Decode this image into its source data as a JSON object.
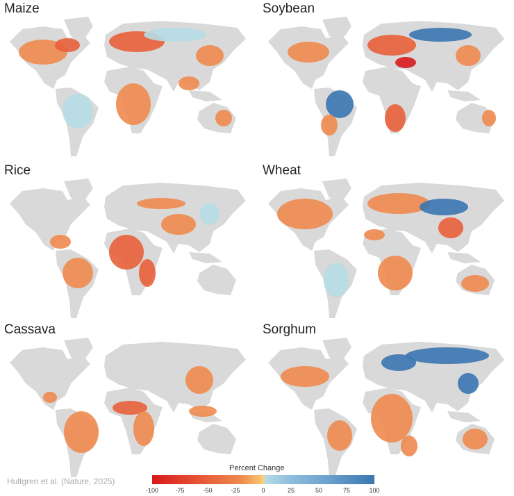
{
  "panels": [
    {
      "title": "Maize",
      "theme": "mixed"
    },
    {
      "title": "Soybean",
      "theme": "mixed-red"
    },
    {
      "title": "Rice",
      "theme": "orange"
    },
    {
      "title": "Wheat",
      "theme": "orange-blue-asia"
    },
    {
      "title": "Cassava",
      "theme": "tropics"
    },
    {
      "title": "Sorghum",
      "theme": "blue-north"
    }
  ],
  "legend": {
    "title": "Percent Change",
    "ticks": [
      "-100",
      "-75",
      "-50",
      "-25",
      "0",
      "25",
      "50",
      "75",
      "100"
    ],
    "range": [
      -100,
      100
    ],
    "colors": {
      "negative": "#d7191c",
      "mid_negative": "#ee8a4e",
      "zero": "#f9d67a",
      "positive_low": "#b6dbe6",
      "positive": "#3a76b0"
    }
  },
  "credit": "Hultgren et al. (Nature, 2025)",
  "land_color": "#d9d9d9"
}
